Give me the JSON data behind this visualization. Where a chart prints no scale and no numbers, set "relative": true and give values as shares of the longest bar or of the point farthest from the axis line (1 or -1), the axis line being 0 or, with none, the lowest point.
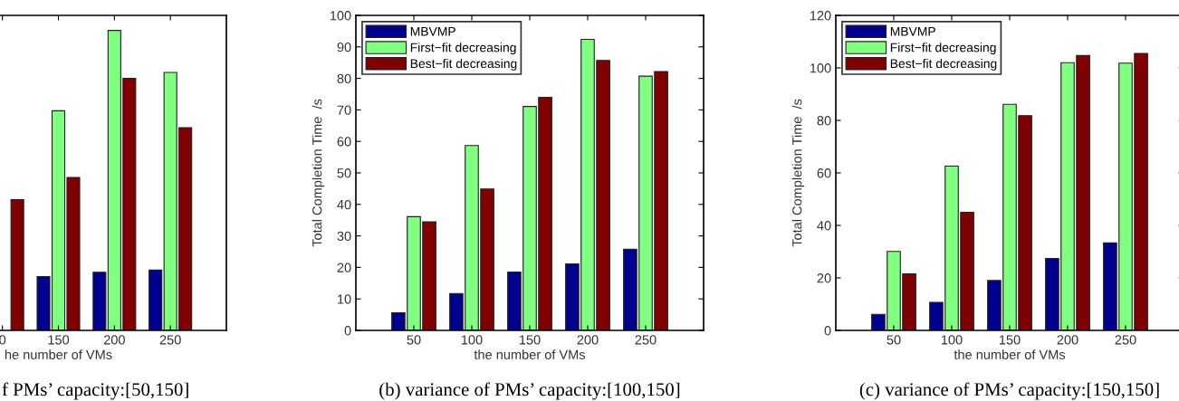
{
  "chart_data": [
    {
      "type": "bar",
      "relative": true,
      "categories": [
        null,
        "0",
        "150",
        "200",
        "250"
      ],
      "xlabel": "he number of VMs",
      "grid": false,
      "series": [
        {
          "color": "#00008f",
          "values": [
            null,
            null,
            0.179,
            0.194,
            0.201
          ]
        },
        {
          "color": "#80ff80",
          "values": [
            null,
            null,
            0.732,
            1.0,
            0.86
          ]
        },
        {
          "color": "#800000",
          "values": [
            null,
            0.436,
            0.51,
            0.84,
            0.676
          ]
        }
      ],
      "annotations": [
        "f PMs’ capacity:[50,150]"
      ]
    },
    {
      "type": "bar",
      "categories": [
        "50",
        "100",
        "150",
        "200",
        "250"
      ],
      "xlabel": "the number of VMs",
      "ylabel": "Total Completion Time  /s",
      "legend": "top left",
      "grid": false,
      "ylim": [
        0,
        100
      ],
      "yticks": [
        0,
        10,
        20,
        30,
        40,
        50,
        60,
        70,
        80,
        90,
        100
      ],
      "series": [
        {
          "name": "MBVMP",
          "color": "#00008f",
          "values": [
            5.6,
            11.7,
            18.5,
            21.1,
            25.8
          ]
        },
        {
          "name": "First−fit decreasing",
          "color": "#80ff80",
          "values": [
            36.1,
            58.7,
            71.1,
            92.4,
            80.7
          ]
        },
        {
          "name": "Best−fit decreasing",
          "color": "#800000",
          "values": [
            34.5,
            44.9,
            74.0,
            85.7,
            82.2
          ]
        }
      ],
      "annotations": [
        "(b) variance of PMs’ capacity:[100,150]"
      ]
    },
    {
      "type": "bar",
      "categories": [
        "50",
        "100",
        "150",
        "200",
        "250"
      ],
      "xlabel": "the number of VMs",
      "ylabel": "Total Completion Time  /s",
      "legend": "top left",
      "grid": false,
      "ylim": [
        0,
        120
      ],
      "yticks": [
        0,
        20,
        40,
        60,
        80,
        100,
        120
      ],
      "series": [
        {
          "name": "MBVMP",
          "color": "#00008f",
          "values": [
            6.1,
            10.7,
            19.0,
            27.4,
            33.3
          ]
        },
        {
          "name": "First−fit decreasing",
          "color": "#80ff80",
          "values": [
            30.1,
            62.6,
            86.1,
            102.0,
            101.8
          ]
        },
        {
          "name": "Best−fit decreasing",
          "color": "#800000",
          "values": [
            21.5,
            45.0,
            81.8,
            104.7,
            105.5
          ]
        }
      ],
      "annotations": [
        "(c) variance of PMs’ capacity:[150,150]"
      ]
    }
  ]
}
